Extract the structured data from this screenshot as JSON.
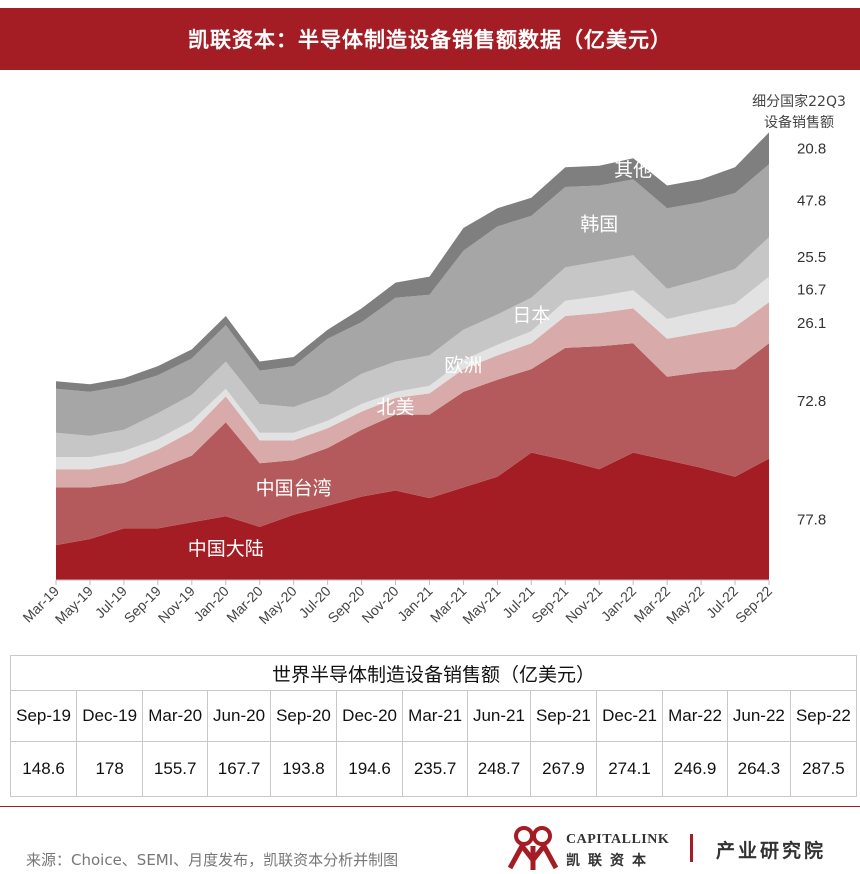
{
  "header": {
    "title": "凯联资本：半导体制造设备销售额数据（亿美元）"
  },
  "legend_header": {
    "line1": "细分国家22Q3",
    "line2": "设备销售额"
  },
  "chart_data": {
    "type": "area",
    "stacked": true,
    "categories": [
      "Mar-19",
      "May-19",
      "Jul-19",
      "Sep-19",
      "Nov-19",
      "Jan-20",
      "Mar-20",
      "May-20",
      "Jul-20",
      "Sep-20",
      "Nov-20",
      "Jan-21",
      "Mar-21",
      "May-21",
      "Jul-21",
      "Sep-21",
      "Nov-21",
      "Jan-22",
      "Mar-22",
      "May-22",
      "Jul-22",
      "Sep-22"
    ],
    "ylim": [
      0,
      290
    ],
    "series": [
      {
        "name": "中国大陆",
        "color": "#a41d24",
        "q3_value": "77.8",
        "values": [
          23,
          27,
          34,
          34,
          38,
          42,
          35,
          43,
          49,
          55,
          59,
          54,
          61,
          68,
          84,
          79,
          73,
          84,
          79,
          74,
          68,
          80
        ]
      },
      {
        "name": "中国台湾",
        "color": "#b55a5c",
        "q3_value": "72.8",
        "values": [
          38,
          34,
          30,
          39,
          44,
          62,
          42,
          36,
          38,
          44,
          50,
          55,
          63,
          64,
          55,
          74,
          81,
          72,
          55,
          63,
          71,
          76
        ]
      },
      {
        "name": "北美",
        "color": "#d9aaaa",
        "q3_value": "26.1",
        "values": [
          12,
          12,
          13,
          13,
          16,
          17,
          15,
          13,
          13,
          12,
          11,
          14,
          15,
          16,
          17,
          21,
          22,
          23,
          25,
          26,
          28,
          27
        ]
      },
      {
        "name": "欧洲",
        "color": "#e2e2e2",
        "q3_value": "16.7",
        "values": [
          8,
          8,
          8,
          7,
          7,
          5,
          5,
          5,
          5,
          5,
          4,
          5,
          6,
          7,
          8,
          10,
          11,
          12,
          13,
          14,
          15,
          17
        ]
      },
      {
        "name": "日本",
        "color": "#c6c6c6",
        "q3_value": "25.5",
        "values": [
          16,
          14,
          14,
          17,
          17,
          18,
          19,
          17,
          17,
          20,
          20,
          20,
          20,
          20,
          22,
          22,
          23,
          23,
          20,
          21,
          23,
          26
        ]
      },
      {
        "name": "韩国",
        "color": "#a6a6a6",
        "q3_value": "47.8",
        "values": [
          29,
          29,
          29,
          25,
          24,
          24,
          22,
          27,
          37,
          34,
          42,
          40,
          52,
          58,
          54,
          53,
          50,
          50,
          53,
          51,
          50,
          48
        ]
      },
      {
        "name": "其他",
        "color": "#7f7f7f",
        "q3_value": "20.8",
        "values": [
          5,
          5,
          5,
          6,
          6,
          6,
          6,
          6,
          6,
          9,
          10,
          12,
          15,
          12,
          12,
          13,
          13,
          14,
          15,
          15,
          17,
          21
        ]
      }
    ]
  },
  "table": {
    "title": "世界半导体制造设备销售额（亿美元）",
    "headers": [
      "Sep-19",
      "Dec-19",
      "Mar-20",
      "Jun-20",
      "Sep-20",
      "Dec-20",
      "Mar-21",
      "Jun-21",
      "Sep-21",
      "Dec-21",
      "Mar-22",
      "Jun-22",
      "Sep-22"
    ],
    "values": [
      "148.6",
      "178",
      "155.7",
      "167.7",
      "193.8",
      "194.6",
      "235.7",
      "248.7",
      "267.9",
      "274.1",
      "246.9",
      "264.3",
      "287.5"
    ]
  },
  "footer": {
    "source": "来源：Choice、SEMI、月度发布，凯联资本分析并制图",
    "logo_en": "CAPITALLINK",
    "logo_cn": "凯联资本",
    "dept": "产业研究院"
  }
}
